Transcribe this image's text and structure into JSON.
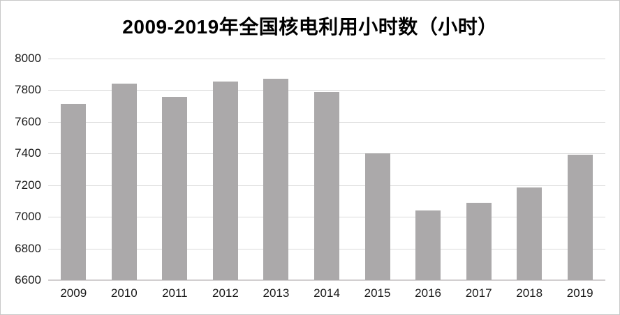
{
  "chart_data": {
    "type": "bar",
    "title": "2009-2019年全国核电利用小时数（小时）",
    "categories": [
      "2009",
      "2010",
      "2011",
      "2012",
      "2013",
      "2014",
      "2015",
      "2016",
      "2017",
      "2018",
      "2019"
    ],
    "values": [
      7716,
      7840,
      7759,
      7855,
      7874,
      7787,
      7403,
      7042,
      7089,
      7184,
      7394
    ],
    "xlabel": "",
    "ylabel": "",
    "ylim": [
      6600,
      8000
    ],
    "ytick_step": 200,
    "yticks": [
      6600,
      6800,
      7000,
      7200,
      7400,
      7600,
      7800,
      8000
    ],
    "grid": "horizontal",
    "legend_position": "none",
    "colors": {
      "bar": "#aba9aa",
      "gridline": "#dadada",
      "axis_line": "#d2cfd0",
      "tick_label": "#1a1a1a",
      "title": "#000000",
      "background": "#ffffff",
      "page_border": "#c8c8c8"
    }
  }
}
